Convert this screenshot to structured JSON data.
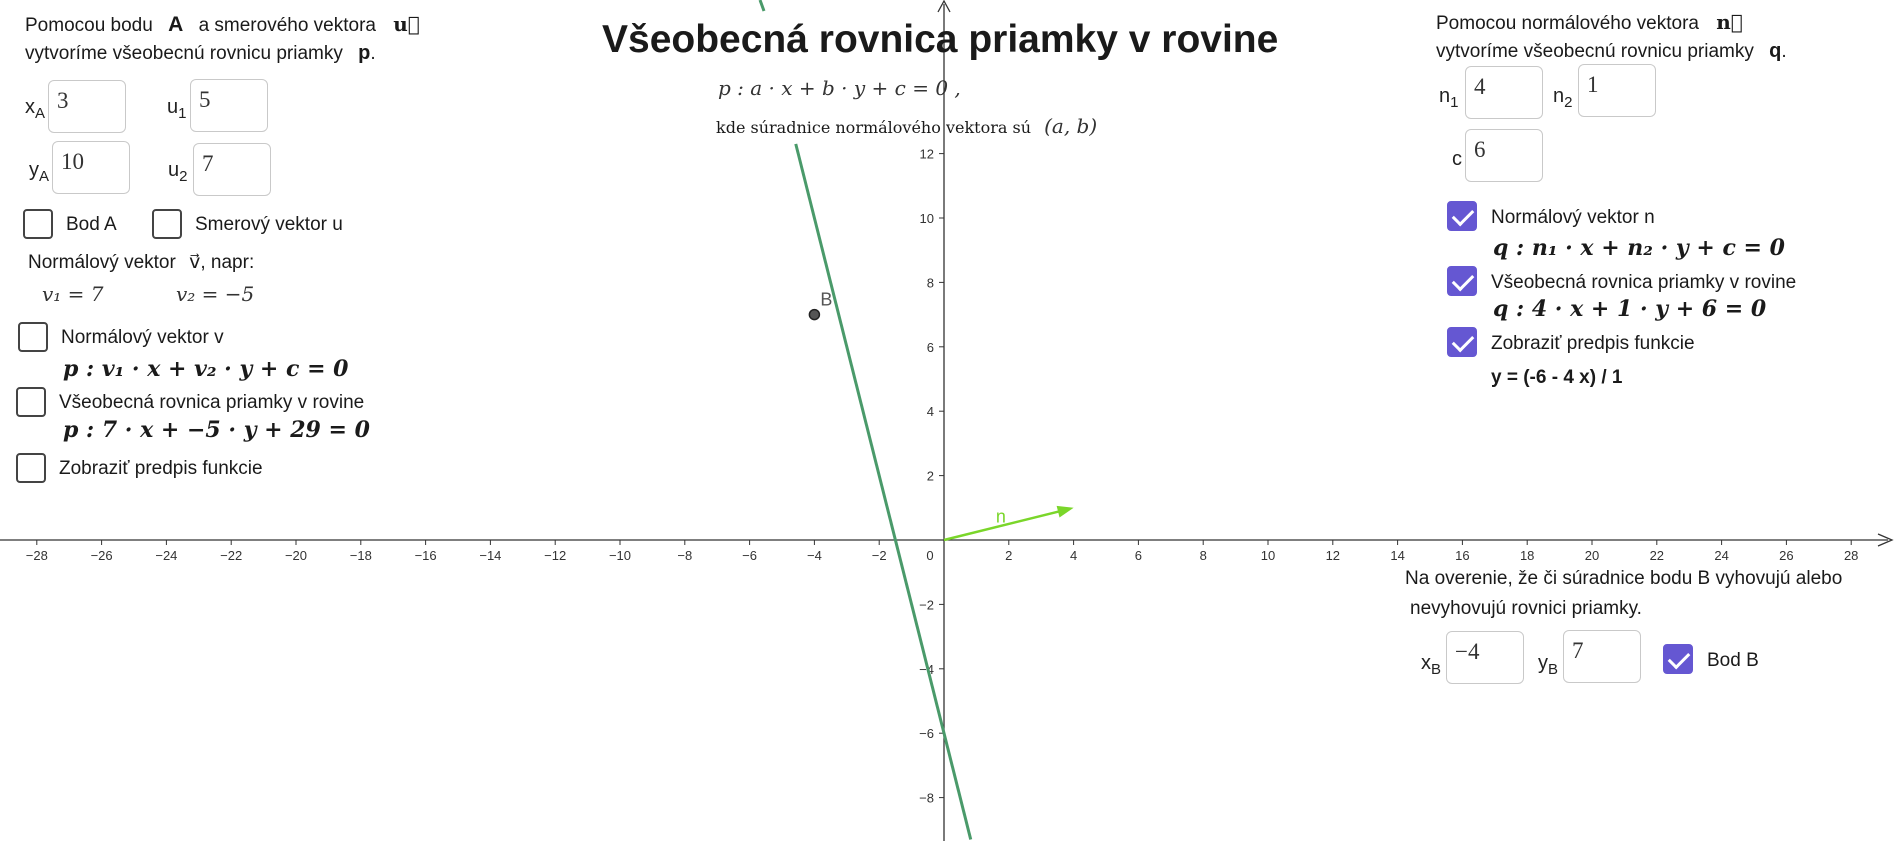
{
  "title": "Všeobecná rovnica priamky v rovine",
  "subtitle_eq": "p : a · x + b · y + c = 0 ,",
  "subtitle_note": "kde súradnice normálového vektora sú",
  "subtitle_ab": "(a, b)",
  "left": {
    "intro_prefix": "Pomocou bodu",
    "point_letter": "A",
    "intro_mid": "a smerového vektora",
    "vec_u": "u⃗",
    "intro_line2": "vytvoríme všeobecnú rovnicu priamky",
    "line_letter": "p",
    "period": ".",
    "xA_label": "x",
    "xA_sub": "A",
    "xA_value": "3",
    "yA_label": "y",
    "yA_sub": "A",
    "yA_value": "10",
    "u1_label": "u",
    "u1_sub": "1",
    "u1_value": "5",
    "u2_label": "u",
    "u2_sub": "2",
    "u2_value": "7",
    "cb_bod_a": "Bod A",
    "cb_smerovy": "Smerový vektor u",
    "normal_text": "Normálový vektor",
    "vec_v": "v⃗",
    "normal_suffix": ", napr:",
    "v1_eq": "v₁ = 7",
    "v2_eq": "v₂ = −5",
    "cb_normal_v": "Normálový vektor v",
    "eq_p_general": "p : v₁ · x + v₂ · y + c = 0",
    "cb_vseobecna": "Všeobecná rovnica priamky v rovine",
    "eq_p_numeric": "p :  7  · x + −5 · y + 29 = 0",
    "cb_predpis": "Zobraziť predpis funkcie"
  },
  "right": {
    "intro_line1": "Pomocou normálového vektora",
    "vec_n": "n⃗",
    "intro_line2": "vytvoríme všeobecnú rovnicu priamky",
    "line_letter": "q",
    "period": ".",
    "n1_label": "n",
    "n1_sub": "1",
    "n1_value": "4",
    "n2_label": "n",
    "n2_sub": "2",
    "n2_value": "1",
    "c_label": "c",
    "c_value": "6",
    "cb_normal_n": "Normálový vektor n",
    "eq_q_general": "q :  n₁ · x + n₂ · y + c = 0",
    "cb_vseobecna": "Všeobecná rovnica priamky v rovine",
    "eq_q_numeric": "q : 4 · x + 1 · y + 6 = 0",
    "cb_predpis": "Zobraziť predpis funkcie",
    "function_text": "y = (-6 - 4 x) / 1"
  },
  "verify": {
    "line1": "Na overenie, že či súradnice bodu B vyhovujú alebo",
    "line2": "nevyhovujú rovnici priamky.",
    "xB_label": "x",
    "xB_sub": "B",
    "xB_value": "−4",
    "yB_label": "y",
    "yB_sub": "B",
    "yB_value": "7",
    "cb_bod_b": "Bod B"
  },
  "checkboxes": {
    "bod_a": false,
    "smerovy_u": false,
    "normal_v": false,
    "vseobecna_p": false,
    "predpis_p": false,
    "normal_n": true,
    "vseobecna_q": true,
    "predpis_q": true,
    "bod_b": true
  },
  "graph": {
    "x_ticks": [
      -28,
      -26,
      -24,
      -22,
      -20,
      -18,
      -16,
      -14,
      -12,
      -10,
      -8,
      -6,
      -4,
      -2,
      0,
      2,
      4,
      6,
      8,
      10,
      12,
      14,
      16,
      18,
      20,
      22,
      24,
      26,
      28
    ],
    "y_ticks": [
      12,
      10,
      8,
      6,
      4,
      2,
      -2,
      -4,
      -6,
      -8
    ],
    "point_B": {
      "x": -4,
      "y": 7,
      "label": "B"
    },
    "vector_n": {
      "x": 4,
      "y": 1,
      "label": "n"
    },
    "line_q": {
      "a": 4,
      "b": 1,
      "c": 6
    },
    "colors": {
      "line": "#4a9a6a",
      "vector": "#7ad62a",
      "point": "#333333",
      "checkbox": "#6557d2"
    }
  }
}
